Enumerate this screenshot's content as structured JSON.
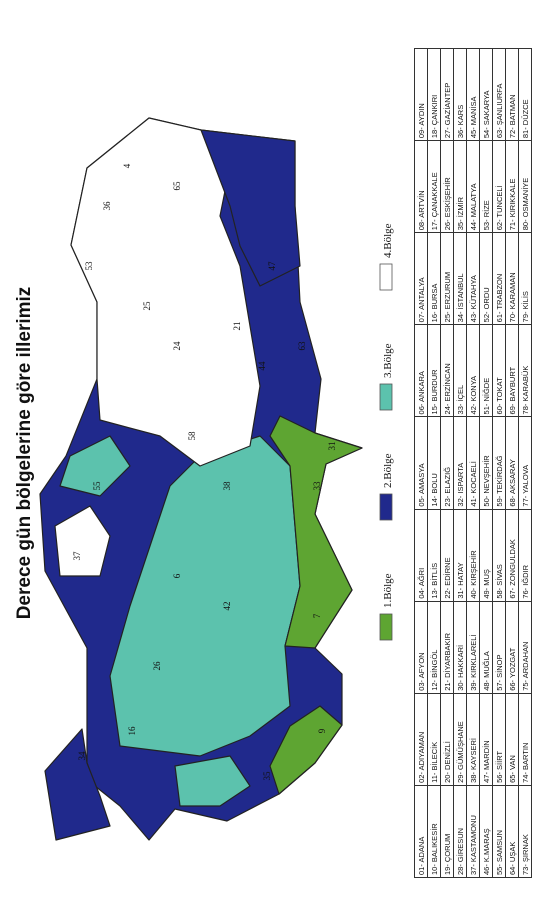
{
  "title": "Derece gün bölgelerine göre illerimiz",
  "legend": [
    {
      "label": "1.Bölge",
      "color": "#5ea532"
    },
    {
      "label": "2.Bölge",
      "color": "#20298c"
    },
    {
      "label": "3.Bölge",
      "color": "#5cc2ad"
    },
    {
      "label": "4.Bölge",
      "color": "#ffffff"
    }
  ],
  "map": {
    "labels": [
      "7",
      "33",
      "42",
      "6",
      "58",
      "25",
      "65",
      "36",
      "31",
      "35",
      "9",
      "34",
      "16",
      "26",
      "38",
      "44",
      "21",
      "63",
      "47",
      "24",
      "4",
      "55",
      "37",
      "53"
    ]
  },
  "table": {
    "rows": [
      [
        "01- ADANA",
        "02- ADIYAMAN",
        "03- AFYON",
        "04- AĞRI",
        "05- AMASYA",
        "06- ANKARA",
        "07- ANTALYA",
        "08- ARTVİN",
        "09- AYDIN"
      ],
      [
        "10- BALIKESİR",
        "11- BİLECİK",
        "12- BİNGÖL",
        "13- BİTLİS",
        "14- BOLU",
        "15- BURDUR",
        "16- BURSA",
        "17- ÇANAKKALE",
        "18- ÇANKIRI"
      ],
      [
        "19- ÇORUM",
        "20- DENİZLİ",
        "21- DİYARBAKIR",
        "22- EDİRNE",
        "23- ELAZIĞ",
        "24- ERZİNCAN",
        "25- ERZURUM",
        "26- ESKİŞEHİR",
        "27- GAZİANTEP"
      ],
      [
        "28- GİRESUN",
        "29- GÜMÜŞHANE",
        "30- HAKKARİ",
        "31- HATAY",
        "32- ISPARTA",
        "33- İÇEL",
        "34- İSTANBUL",
        "35- İZMİR",
        "36- KARS"
      ],
      [
        "37- KASTAMONU",
        "38- KAYSERİ",
        "39- KIRKLARELİ",
        "40- KIRŞEHİR",
        "41- KOCAELİ",
        "42- KONYA",
        "43- KÜTAHYA",
        "44- MALATYA",
        "45- MANİSA"
      ],
      [
        "46- K.MARAŞ",
        "47- MARDİN",
        "48- MUĞLA",
        "49- MUŞ",
        "50- NEVŞEHİR",
        "51- NİĞDE",
        "52- ORDU",
        "53- RİZE",
        "54- SAKARYA"
      ],
      [
        "55- SAMSUN",
        "56- SİİRT",
        "57- SİNOP",
        "58- SİVAS",
        "59- TEKİRDAĞ",
        "60- TOKAT",
        "61- TRABZON",
        "62- TUNCELİ",
        "63- ŞANLIURFA"
      ],
      [
        "64- UŞAK",
        "65- VAN",
        "66- YOZGAT",
        "67- ZONGULDAK",
        "68- AKSARAY",
        "69- BAYBURT",
        "70- KARAMAN",
        "71- KIRIKKALE",
        "72- BATMAN"
      ],
      [
        "73- ŞIRNAK",
        "74- BARTIN",
        "75- ARDAHAN",
        "76- IĞDIR",
        "77- YALOVA",
        "78- KARABÜK",
        "79- KİLİS",
        "80- OSMANİYE",
        "81- DÜZCE"
      ]
    ]
  }
}
